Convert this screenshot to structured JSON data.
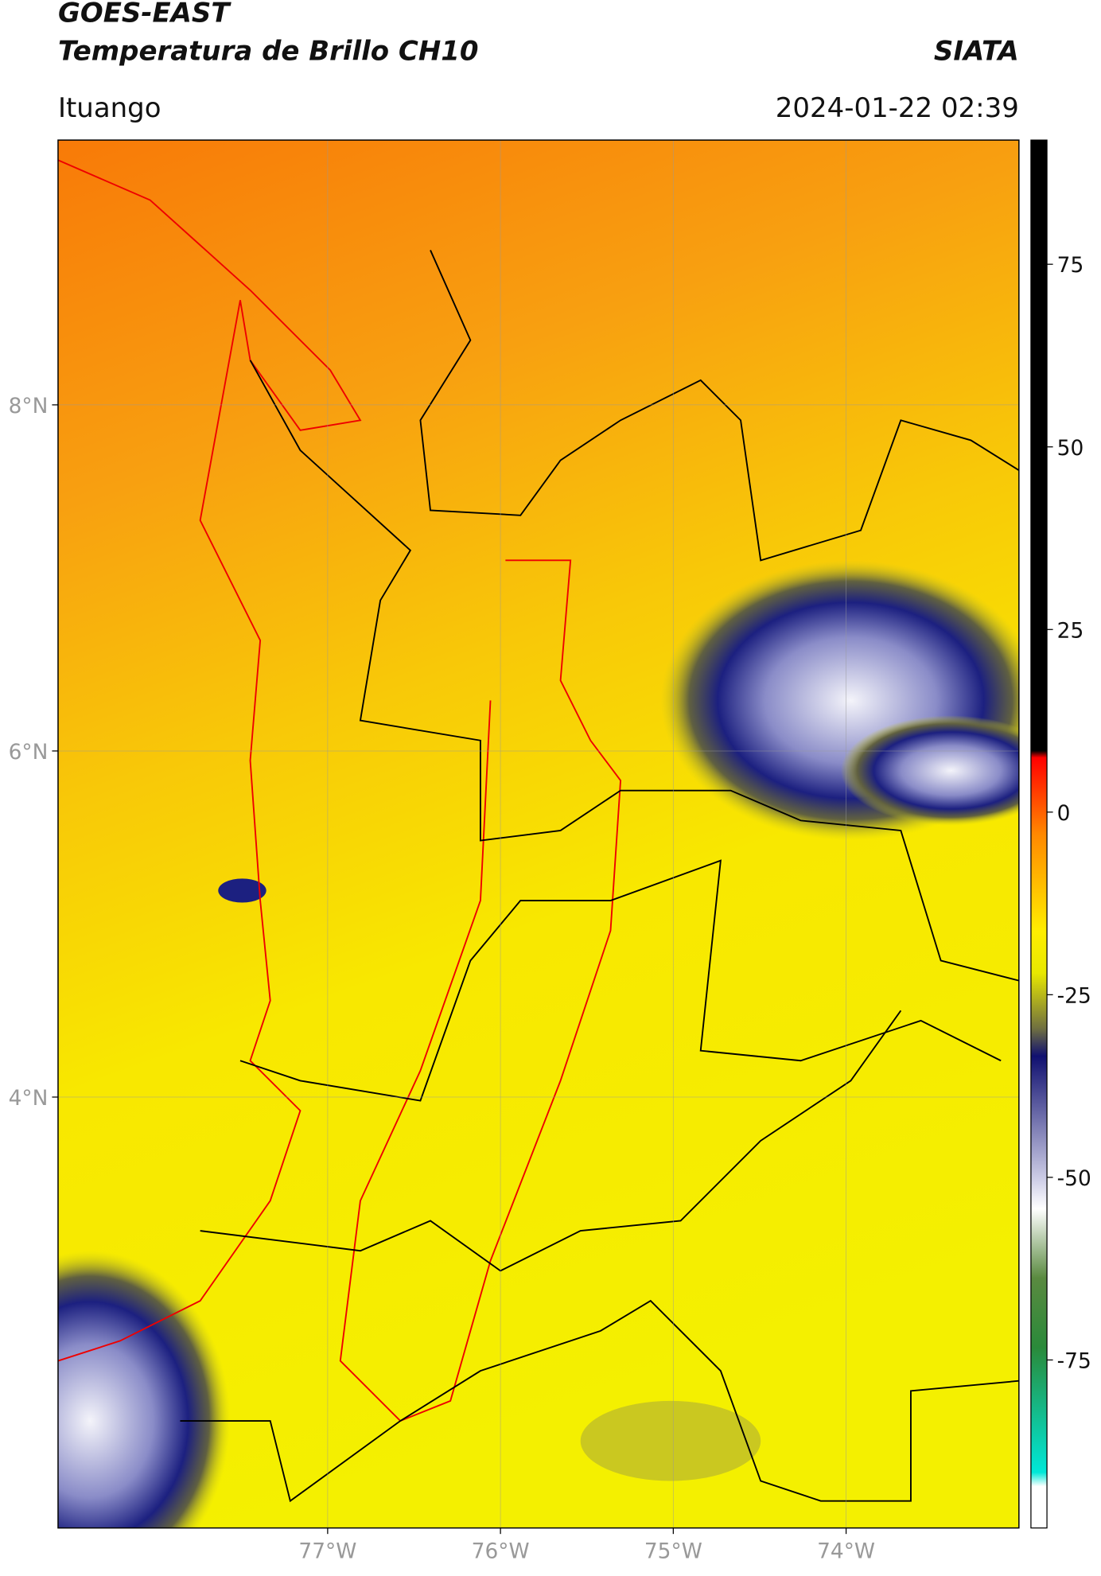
{
  "header": {
    "title": "GOES-EAST",
    "subtitle": "Temperatura de Brillo CH10",
    "source": "SIATA",
    "location": "Ituango",
    "datetime": "2024-01-22 02:39"
  },
  "map": {
    "xlim": [
      -78.56,
      -73.0
    ],
    "ylim": [
      1.51,
      9.53
    ],
    "xticks": [
      {
        "value": -77,
        "label": "77°W"
      },
      {
        "value": -76,
        "label": "76°W"
      },
      {
        "value": -75,
        "label": "75°W"
      },
      {
        "value": -74,
        "label": "74°W"
      }
    ],
    "yticks": [
      {
        "value": 8,
        "label": "8°N"
      },
      {
        "value": 6,
        "label": "6°N"
      },
      {
        "value": 4,
        "label": "4°N"
      }
    ],
    "grid": true
  },
  "colorbar": {
    "lim": [
      -98,
      92
    ],
    "ticks": [
      75,
      50,
      25,
      0,
      -25,
      -50,
      -75
    ]
  }
}
